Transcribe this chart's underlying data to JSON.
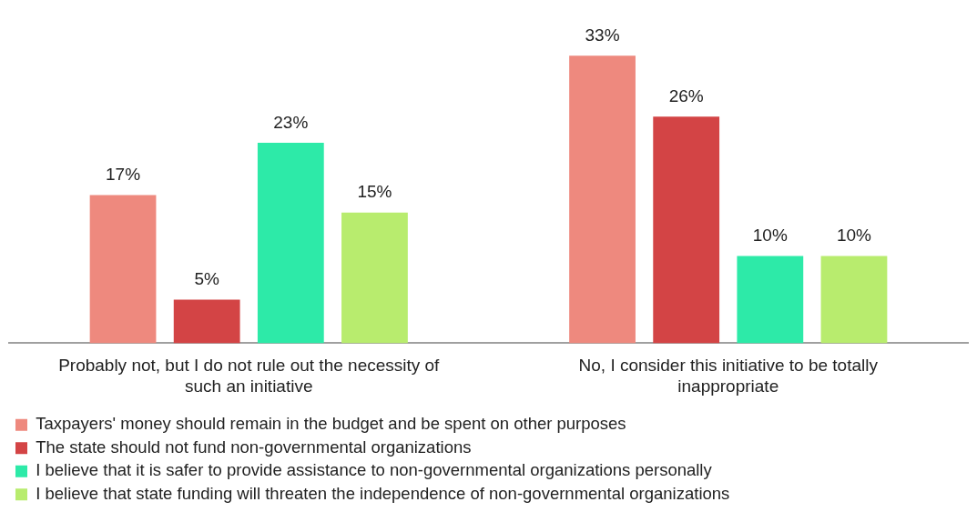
{
  "chart_data": {
    "type": "bar",
    "categories": [
      "Probably not, but I do not rule out the necessity of such an initiative",
      "No, I consider this initiative to be totally inappropriate"
    ],
    "series": [
      {
        "name": "Taxpayers' money should remain in the budget and be spent on other purposes",
        "color": "#ee897e",
        "values": [
          17,
          33
        ],
        "value_labels": [
          "17%",
          "33%"
        ]
      },
      {
        "name": "The state should not fund non-governmental organizations",
        "color": "#d34445",
        "values": [
          5,
          26
        ],
        "value_labels": [
          "5%",
          "26%"
        ]
      },
      {
        "name": "I believe that it is safer to provide assistance to non-governmental organizations personally",
        "color": "#2deaa8",
        "values": [
          23,
          10
        ],
        "value_labels": [
          "23%",
          "10%"
        ]
      },
      {
        "name": "I believe that state funding will threaten the independence of non-governmental organizations",
        "color": "#b8ec6e",
        "values": [
          15,
          10
        ],
        "value_labels": [
          "15%",
          "10%"
        ]
      }
    ],
    "grid": false,
    "legend": "bottom",
    "tick_labels": "x"
  }
}
